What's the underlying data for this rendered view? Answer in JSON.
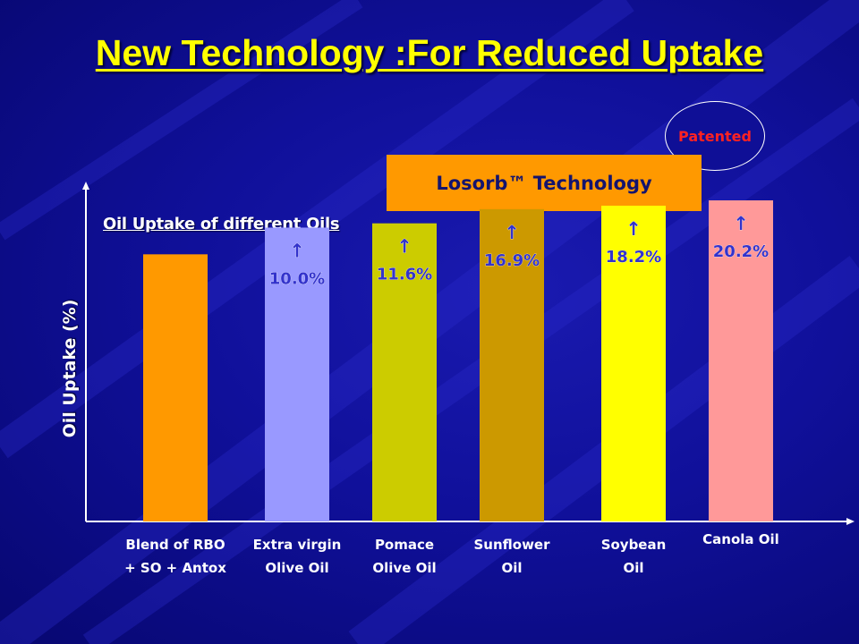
{
  "slide": {
    "title": "New Technology :For Reduced Uptake",
    "badge": "Patented",
    "callout": "Losorb™ Technology",
    "subtitle": "Oil Uptake of different Oils",
    "arrow_symbol": "↑"
  },
  "colors": {
    "title": "#ffff00",
    "badge_text": "#ff2222",
    "callout_bg": "#ff9900",
    "label_text": "#3333cc"
  },
  "chart_data": {
    "type": "bar",
    "title": "Oil Uptake of different Oils",
    "ylabel": "Oil Uptake (%)",
    "xlabel": "",
    "categories": [
      [
        "Blend of RBO",
        "+ SO + Antox"
      ],
      [
        "Extra virgin",
        "Olive Oil"
      ],
      [
        "Pomace",
        "Olive Oil"
      ],
      [
        "Sunflower",
        "Oil"
      ],
      [
        "Soybean",
        "Oil"
      ],
      [
        "Canola Oil"
      ]
    ],
    "values": [
      100,
      110.0,
      111.6,
      116.9,
      118.2,
      120.2
    ],
    "data_labels": [
      "",
      "10.0%",
      "11.6%",
      "16.9%",
      "18.2%",
      "20.2%"
    ],
    "bar_colors": [
      "#ff9900",
      "#9999ff",
      "#cccc00",
      "#cc9900",
      "#ffff00",
      "#ff9999"
    ],
    "ylim": [
      0,
      120.2
    ],
    "grid": false,
    "legend": "none"
  }
}
